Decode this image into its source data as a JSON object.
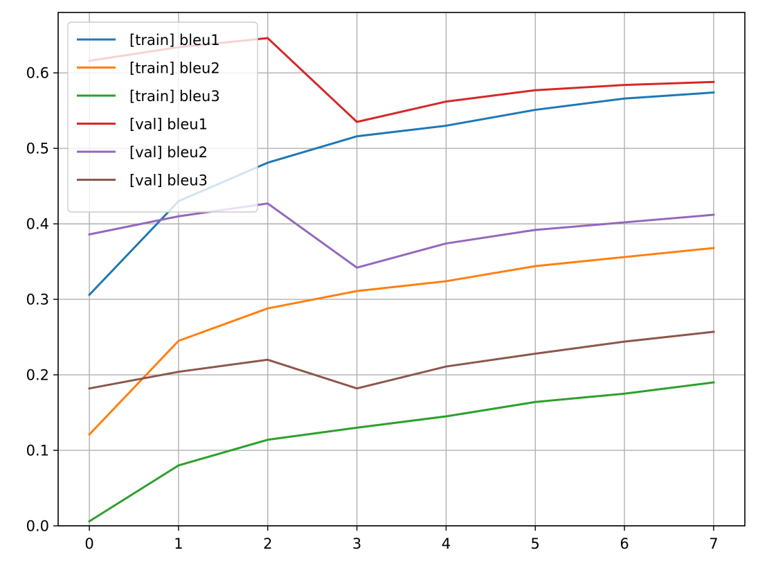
{
  "chart_data": {
    "type": "line",
    "title": "",
    "xlabel": "",
    "ylabel": "",
    "x": [
      0,
      1,
      2,
      3,
      4,
      5,
      6,
      7
    ],
    "xlim": [
      -0.35,
      7.35
    ],
    "ylim": [
      0.0,
      0.68
    ],
    "xticks": [
      0,
      1,
      2,
      3,
      4,
      5,
      6,
      7
    ],
    "yticks": [
      0.0,
      0.1,
      0.2,
      0.3,
      0.4,
      0.5,
      0.6
    ],
    "ytick_labels": [
      "0.0",
      "0.1",
      "0.2",
      "0.3",
      "0.4",
      "0.5",
      "0.6"
    ],
    "grid": true,
    "legend_position": "top-left",
    "series": [
      {
        "name": "[train] bleu1",
        "color": "#1f77b4",
        "values": [
          0.306,
          0.43,
          0.481,
          0.516,
          0.53,
          0.551,
          0.566,
          0.574
        ]
      },
      {
        "name": "[train] bleu2",
        "color": "#ff7f0e",
        "values": [
          0.121,
          0.245,
          0.288,
          0.311,
          0.324,
          0.344,
          0.356,
          0.368
        ]
      },
      {
        "name": "[train] bleu3",
        "color": "#2ca02c",
        "values": [
          0.006,
          0.08,
          0.114,
          0.13,
          0.145,
          0.164,
          0.175,
          0.19
        ]
      },
      {
        "name": "[val] bleu1",
        "color": "#d62728",
        "values": [
          0.616,
          0.634,
          0.646,
          0.535,
          0.562,
          0.577,
          0.584,
          0.588
        ]
      },
      {
        "name": "[val] bleu2",
        "color": "#9467bd",
        "values": [
          0.386,
          0.41,
          0.427,
          0.342,
          0.374,
          0.392,
          0.402,
          0.412
        ]
      },
      {
        "name": "[val] bleu3",
        "color": "#8c564b",
        "values": [
          0.182,
          0.204,
          0.22,
          0.182,
          0.211,
          0.228,
          0.244,
          0.257
        ]
      }
    ]
  }
}
